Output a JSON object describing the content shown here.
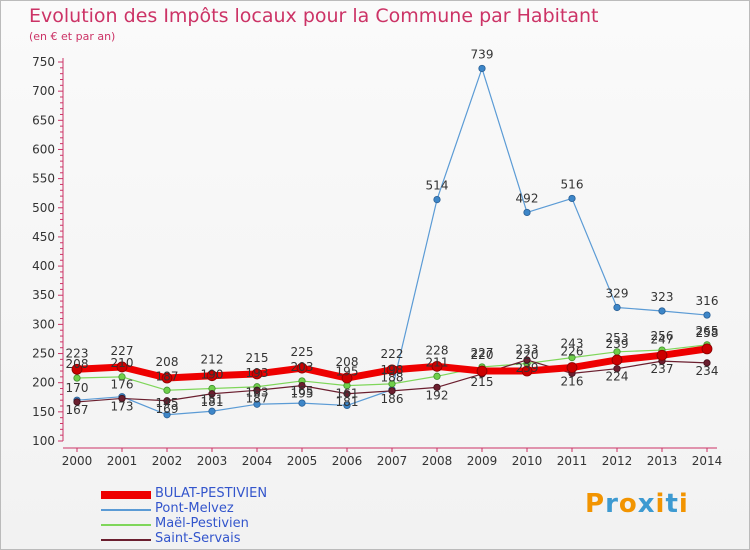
{
  "title": "Evolution des Impôts locaux pour la Commune par Habitant",
  "subtitle": "(en € et par an)",
  "logo": {
    "text": "Proxiti",
    "colors": [
      "#f29400",
      "#3d9ad1",
      "#f29400",
      "#3d9ad1",
      "#f29400",
      "#3d9ad1",
      "#f29400"
    ]
  },
  "chart_data": {
    "type": "line",
    "title": "Evolution des Impôts locaux pour la Commune par Habitant",
    "subtitle": "(en € et par an)",
    "xlabel": "",
    "ylabel": "",
    "ylim": [
      100,
      750
    ],
    "yticks": [
      100,
      150,
      200,
      250,
      300,
      350,
      400,
      450,
      500,
      550,
      600,
      650,
      700,
      750
    ],
    "grid": false,
    "legend_position": "bottom-left",
    "x": [
      "2000",
      "2001",
      "2002",
      "2003",
      "2004",
      "2005",
      "2006",
      "2007",
      "2008",
      "2009",
      "2010",
      "2011",
      "2012",
      "2013",
      "2014"
    ],
    "series": [
      {
        "name": "BULAT-PESTIVIEN",
        "color": "#ee0000",
        "values": [
          223,
          227,
          208,
          212,
          215,
          225,
          208,
          222,
          228,
          220,
          220,
          226,
          239,
          247,
          258
        ]
      },
      {
        "name": "Pont-Melvez",
        "color": "#5b9bd5",
        "values": [
          170,
          176,
          145,
          151,
          163,
          165,
          161,
          188,
          514,
          739,
          492,
          516,
          329,
          323,
          316
        ]
      },
      {
        "name": "Maël-Pestivien",
        "color": "#7fd65a",
        "values": [
          208,
          210,
          187,
          190,
          193,
          203,
          195,
          198,
          211,
          227,
          233,
          243,
          253,
          256,
          265
        ]
      },
      {
        "name": "Saint-Servais",
        "color": "#6b1f2f",
        "values": [
          167,
          173,
          169,
          181,
          187,
          195,
          181,
          186,
          192,
          215,
          239,
          216,
          224,
          237,
          234
        ]
      }
    ]
  }
}
